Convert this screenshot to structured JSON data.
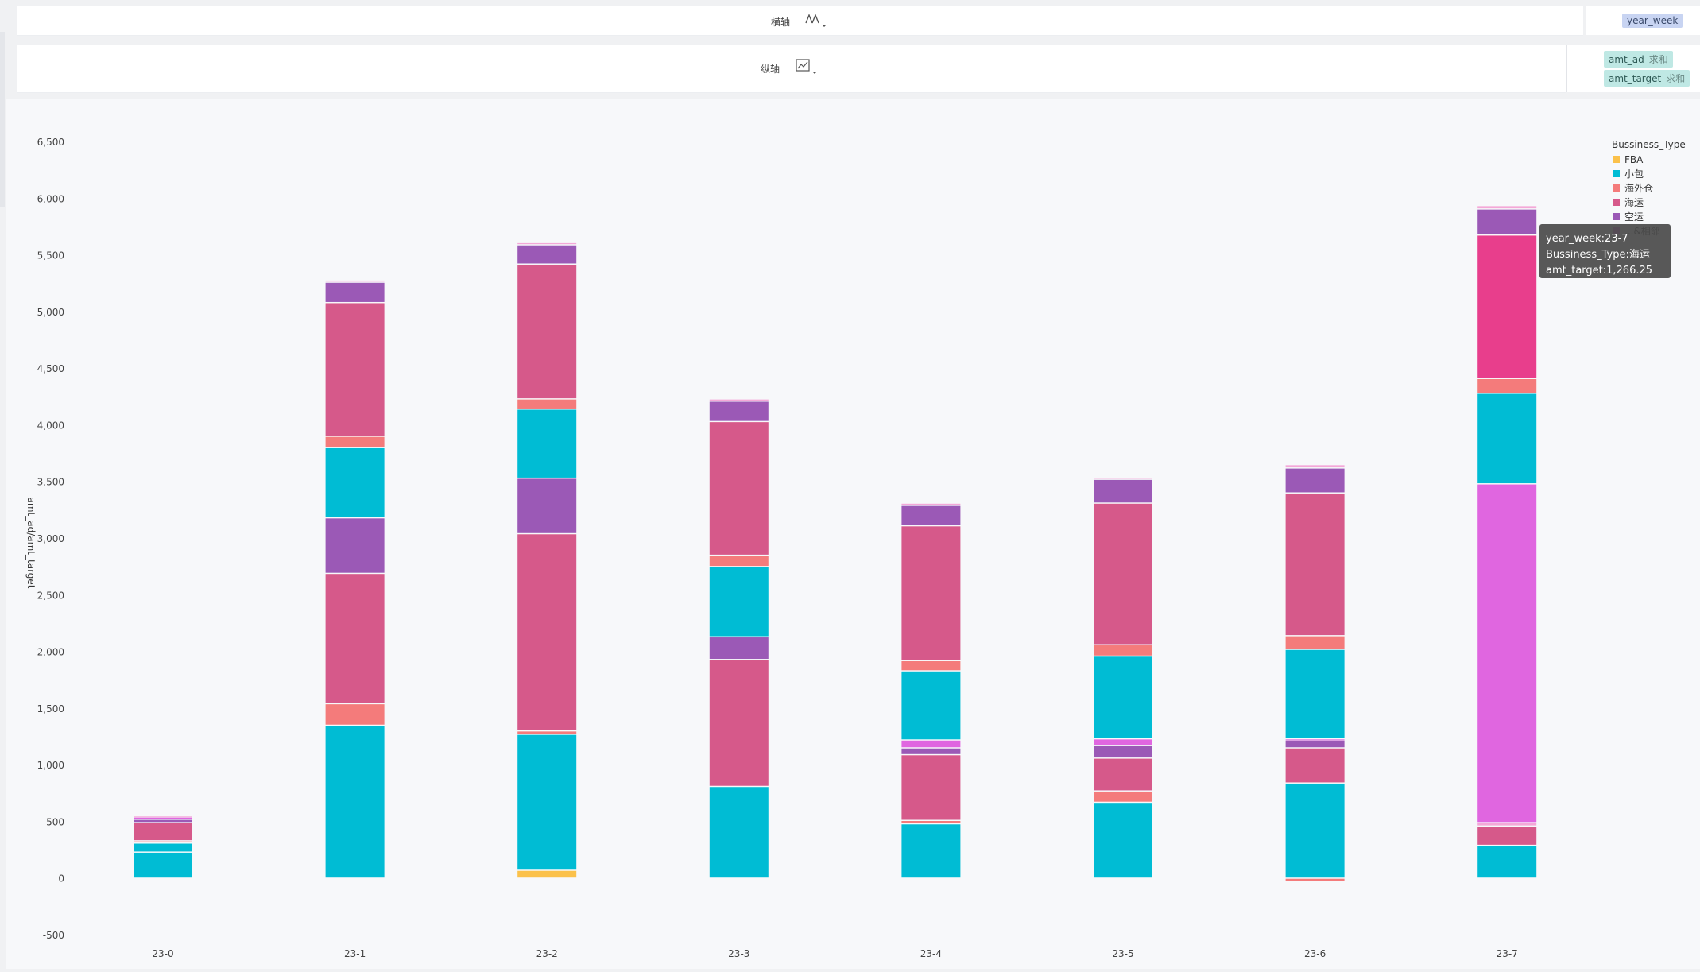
{
  "shelves": {
    "x": {
      "label": "横轴",
      "icon": "chart-type-icon",
      "field": "year_week"
    },
    "y": {
      "label": "纵轴",
      "icon": "line-chart-icon",
      "fields": [
        {
          "name": "amt_ad",
          "agg": "求和"
        },
        {
          "name": "amt_target",
          "agg": "求和"
        }
      ]
    }
  },
  "colors": {
    "FBA": "#fbc14a",
    "小包": "#00bcd4",
    "海外仓": "#f47b7b",
    "海运": "#d6598a",
    "空运": "#9b59b6",
    "other": "#e066e0",
    "top": "#f4a8d8",
    "hover": "#e83e8c"
  },
  "tooltip": {
    "line1": "year_week:23-7",
    "line2": "Bussiness_Type:海运",
    "line3": "amt_target:1,266.25"
  },
  "chart_data": {
    "type": "bar",
    "stacked": true,
    "ylabel": "amt_ad/amt_target",
    "ylim": [
      -500,
      6500
    ],
    "yticks": [
      -500,
      0,
      500,
      1000,
      1500,
      2000,
      2500,
      3000,
      3500,
      4000,
      4500,
      5000,
      5500,
      6000,
      6500
    ],
    "legend": {
      "title": "Bussiness_Type",
      "position": "top-right",
      "entries": [
        "FBA",
        "小包",
        "海外仓",
        "海运",
        "空运",
        "...&相邻"
      ]
    },
    "categories": [
      "23-0",
      "23-1",
      "23-2",
      "23-3",
      "23-4",
      "23-5",
      "23-6",
      "23-7"
    ],
    "bars": [
      {
        "category": "23-0",
        "segments": [
          {
            "type": "小包",
            "value": 230
          },
          {
            "type": "小包",
            "value": 80
          },
          {
            "type": "海外仓",
            "value": 20
          },
          {
            "type": "海运",
            "value": 160
          },
          {
            "type": "空运",
            "value": 30
          },
          {
            "type": "other",
            "value": 20
          },
          {
            "type": "top",
            "value": 10
          }
        ]
      },
      {
        "category": "23-1",
        "segments": [
          {
            "type": "小包",
            "value": 1350
          },
          {
            "type": "海外仓",
            "value": 190
          },
          {
            "type": "海运",
            "value": 1150
          },
          {
            "type": "空运",
            "value": 490
          },
          {
            "type": "小包",
            "value": 620
          },
          {
            "type": "海外仓",
            "value": 100
          },
          {
            "type": "海运",
            "value": 1180
          },
          {
            "type": "空运",
            "value": 180
          },
          {
            "type": "top",
            "value": 20
          }
        ]
      },
      {
        "category": "23-2",
        "segments": [
          {
            "type": "FBA",
            "value": 70
          },
          {
            "type": "小包",
            "value": 1200
          },
          {
            "type": "海外仓",
            "value": 30
          },
          {
            "type": "海运",
            "value": 1740
          },
          {
            "type": "空运",
            "value": 490
          },
          {
            "type": "小包",
            "value": 610
          },
          {
            "type": "海外仓",
            "value": 90
          },
          {
            "type": "海运",
            "value": 1190
          },
          {
            "type": "空运",
            "value": 170
          },
          {
            "type": "top",
            "value": 20
          }
        ]
      },
      {
        "category": "23-3",
        "segments": [
          {
            "type": "小包",
            "value": 810
          },
          {
            "type": "海运",
            "value": 1120
          },
          {
            "type": "空运",
            "value": 200
          },
          {
            "type": "小包",
            "value": 620
          },
          {
            "type": "海外仓",
            "value": 100
          },
          {
            "type": "海运",
            "value": 1180
          },
          {
            "type": "空运",
            "value": 180
          },
          {
            "type": "top",
            "value": 20
          }
        ]
      },
      {
        "category": "23-4",
        "segments": [
          {
            "type": "小包",
            "value": 480
          },
          {
            "type": "海外仓",
            "value": 30
          },
          {
            "type": "海运",
            "value": 580
          },
          {
            "type": "空运",
            "value": 60
          },
          {
            "type": "other",
            "value": 70
          },
          {
            "type": "小包",
            "value": 610
          },
          {
            "type": "海外仓",
            "value": 90
          },
          {
            "type": "海运",
            "value": 1190
          },
          {
            "type": "空运",
            "value": 180
          },
          {
            "type": "top",
            "value": 20
          }
        ]
      },
      {
        "category": "23-5",
        "segments": [
          {
            "type": "小包",
            "value": 670
          },
          {
            "type": "海外仓",
            "value": 100
          },
          {
            "type": "海运",
            "value": 290
          },
          {
            "type": "空运",
            "value": 110
          },
          {
            "type": "other",
            "value": 60
          },
          {
            "type": "小包",
            "value": 730
          },
          {
            "type": "海外仓",
            "value": 100
          },
          {
            "type": "海运",
            "value": 1250
          },
          {
            "type": "空运",
            "value": 210
          },
          {
            "type": "top",
            "value": 20
          }
        ]
      },
      {
        "category": "23-6",
        "segments": [
          {
            "type": "海外仓",
            "value": -30
          },
          {
            "type": "小包",
            "value": 840
          },
          {
            "type": "海运",
            "value": 310
          },
          {
            "type": "空运",
            "value": 70
          },
          {
            "type": "other",
            "value": 10
          },
          {
            "type": "小包",
            "value": 790
          },
          {
            "type": "海外仓",
            "value": 120
          },
          {
            "type": "海运",
            "value": 1260
          },
          {
            "type": "空运",
            "value": 220
          },
          {
            "type": "top",
            "value": 30
          }
        ]
      },
      {
        "category": "23-7",
        "segments": [
          {
            "type": "小包",
            "value": 290
          },
          {
            "type": "海运",
            "value": 170
          },
          {
            "type": "top",
            "value": 30
          },
          {
            "type": "other",
            "value": 2990
          },
          {
            "type": "小包",
            "value": 800
          },
          {
            "type": "海外仓",
            "value": 130
          },
          {
            "type": "hover",
            "value": 1266.25
          },
          {
            "type": "空运",
            "value": 230
          },
          {
            "type": "top",
            "value": 30
          }
        ]
      }
    ]
  }
}
